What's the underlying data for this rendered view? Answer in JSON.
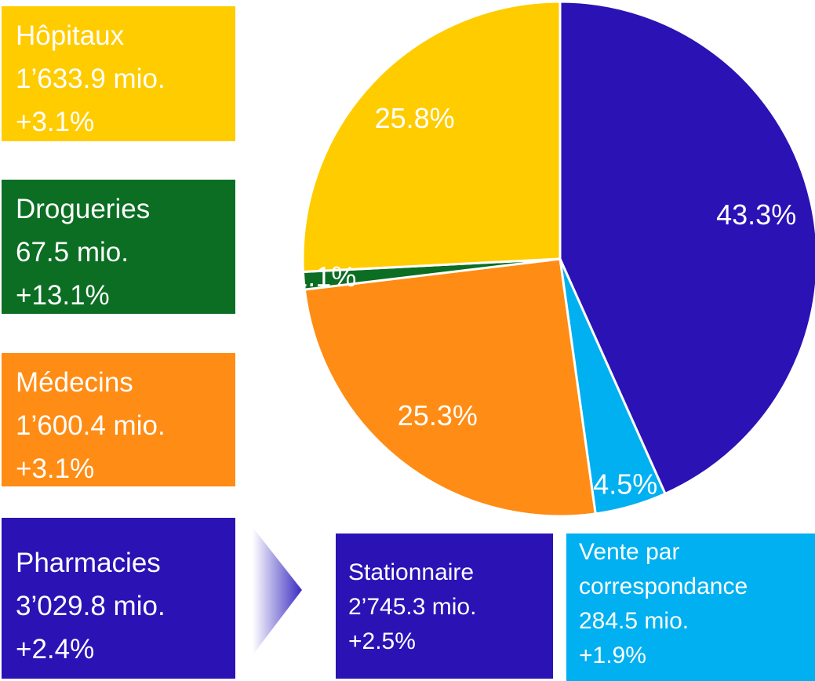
{
  "chart_data": {
    "type": "pie",
    "categories": [
      "Stationnaire",
      "Vente par correspondance",
      "Médecins",
      "Drogueries",
      "Hôpitaux"
    ],
    "values": [
      43.3,
      4.5,
      25.3,
      1.1,
      25.8
    ],
    "value_labels": [
      "43.3%",
      "4.5%",
      "25.3%",
      "1.1%",
      "25.8%"
    ],
    "colors": [
      "#2b12b5",
      "#00b0f0",
      "#ff8c14",
      "#0b6e23",
      "#ffcc00"
    ],
    "details": [
      {
        "amount": "2’745.3 mio.",
        "change": "+2.5%"
      },
      {
        "amount": "284.5 mio.",
        "change": "+1.9%"
      },
      {
        "amount": "1’600.4 mio.",
        "change": "+3.1%"
      },
      {
        "amount": "67.5 mio.",
        "change": "+13.1%"
      },
      {
        "amount": "1’633.9 mio.",
        "change": "+3.1%"
      }
    ]
  },
  "pharmacies": {
    "name": "Pharmacies",
    "amount": "3’029.8 mio.",
    "change": "+2.4%"
  }
}
